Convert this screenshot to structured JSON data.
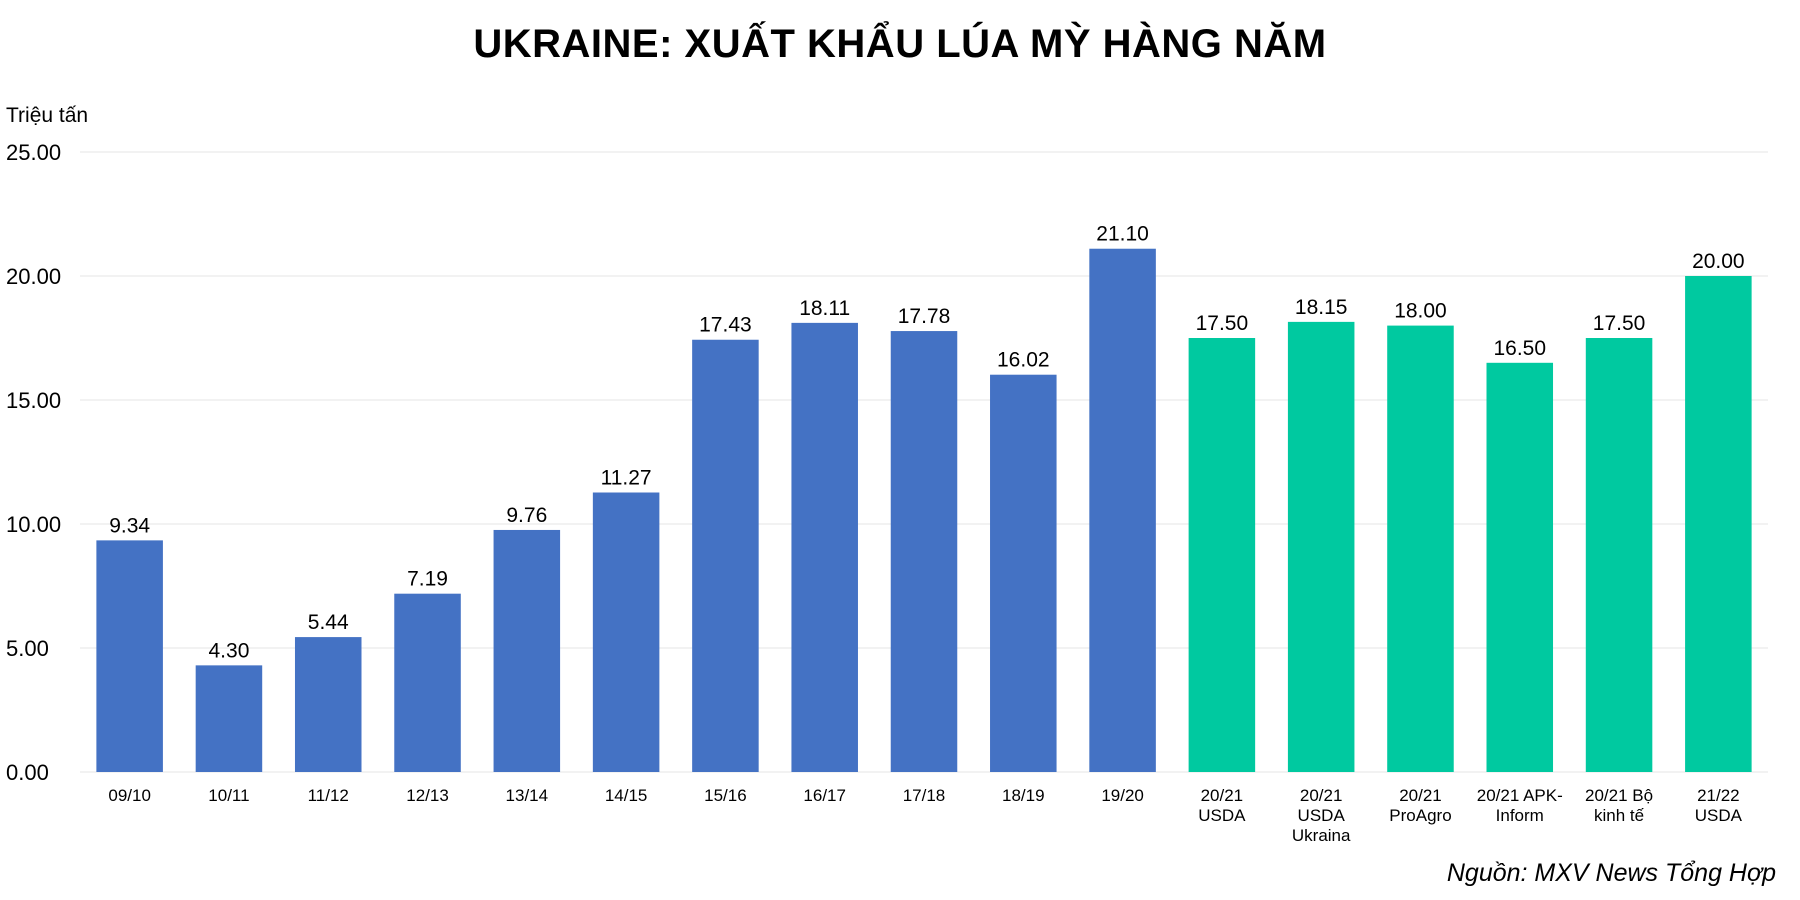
{
  "chart_data": {
    "type": "bar",
    "title": "UKRAINE: XUẤT KHẨU LÚA MỲ HÀNG NĂM",
    "ylabel": "Triệu tấn",
    "xlabel": "",
    "ylim": [
      0,
      25
    ],
    "yticks": [
      "0.00",
      "5.00",
      "10.00",
      "15.00",
      "20.00",
      "25.00"
    ],
    "grid": true,
    "categories": [
      [
        "09/10"
      ],
      [
        "10/11"
      ],
      [
        "11/12"
      ],
      [
        "12/13"
      ],
      [
        "13/14"
      ],
      [
        "14/15"
      ],
      [
        "15/16"
      ],
      [
        "16/17"
      ],
      [
        "17/18"
      ],
      [
        "18/19"
      ],
      [
        "19/20"
      ],
      [
        "20/21",
        "USDA"
      ],
      [
        "20/21",
        "USDA",
        "Ukraina"
      ],
      [
        "20/21",
        "ProAgro"
      ],
      [
        "20/21 APK-",
        "Inform"
      ],
      [
        "20/21 Bộ",
        "kinh tế"
      ],
      [
        "21/22",
        "USDA"
      ]
    ],
    "values": [
      9.34,
      4.3,
      5.44,
      7.19,
      9.76,
      11.27,
      17.43,
      18.11,
      17.78,
      16.02,
      21.1,
      17.5,
      18.15,
      18.0,
      16.5,
      17.5,
      20.0
    ],
    "value_labels": [
      "9.34",
      "4.30",
      "5.44",
      "7.19",
      "9.76",
      "11.27",
      "17.43",
      "18.11",
      "17.78",
      "16.02",
      "21.10",
      "17.50",
      "18.15",
      "18.00",
      "16.50",
      "17.50",
      "20.00"
    ],
    "bar_colors": [
      "#4472c4",
      "#4472c4",
      "#4472c4",
      "#4472c4",
      "#4472c4",
      "#4472c4",
      "#4472c4",
      "#4472c4",
      "#4472c4",
      "#4472c4",
      "#4472c4",
      "#00c9a0",
      "#00c9a0",
      "#00c9a0",
      "#00c9a0",
      "#00c9a0",
      "#00c9a0"
    ],
    "colors": {
      "actual": "#4472c4",
      "forecast": "#00c9a0",
      "grid": "#e6e6e6"
    }
  },
  "source": "Nguồn: MXV News Tổng Hợp"
}
